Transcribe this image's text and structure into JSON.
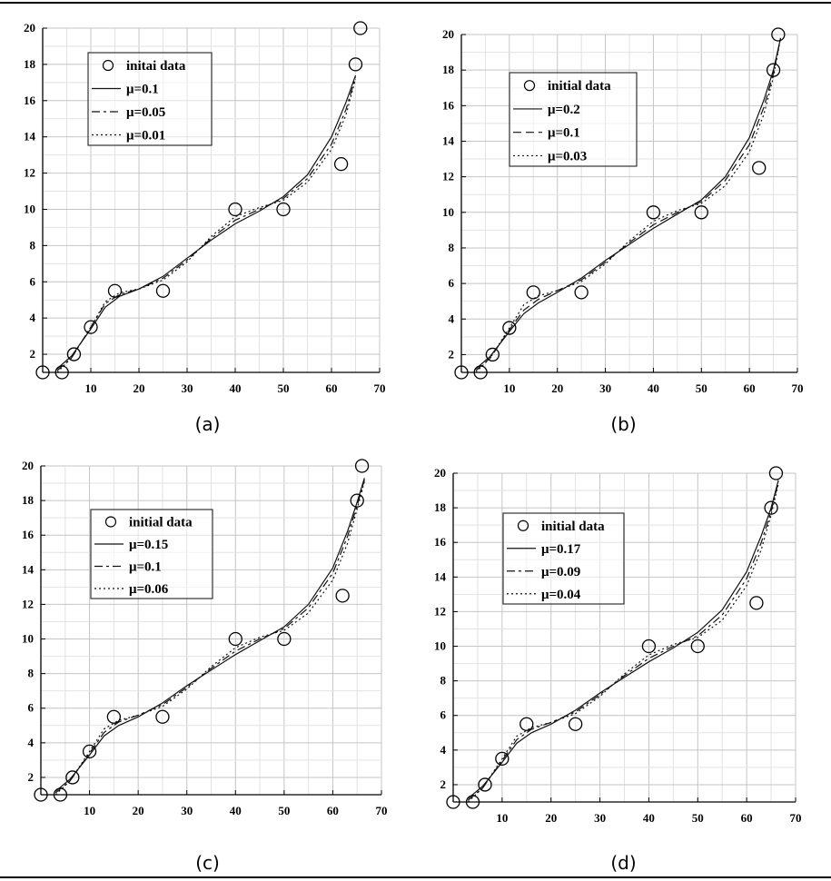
{
  "chart_data": [
    {
      "type": "line",
      "caption": "(a)",
      "xlim": [
        0,
        70
      ],
      "ylim": [
        1,
        20
      ],
      "xticks": [
        10,
        20,
        30,
        40,
        50,
        60,
        70
      ],
      "yticks": [
        2,
        4,
        6,
        8,
        10,
        12,
        14,
        16,
        18,
        20
      ],
      "grid": true,
      "legend_placement": "top-left",
      "scatter": {
        "name": "initai data",
        "x": [
          0,
          4,
          6.5,
          10,
          15,
          25,
          40,
          50,
          62,
          65,
          66
        ],
        "y": [
          1,
          1,
          2,
          3.5,
          5.5,
          5.5,
          10,
          10,
          12.5,
          18,
          20
        ]
      },
      "series": [
        {
          "name": "μ=0.1",
          "style": "solid",
          "x": [
            3,
            6,
            10,
            13,
            16,
            20,
            25,
            30,
            35,
            40,
            45,
            50,
            55,
            60,
            63,
            65
          ],
          "y": [
            1.2,
            1.9,
            3.4,
            4.6,
            5.2,
            5.6,
            6.3,
            7.3,
            8.3,
            9.2,
            9.9,
            10.7,
            11.9,
            14.0,
            15.9,
            17.4
          ]
        },
        {
          "name": "μ=0.05",
          "style": "dashdot",
          "x": [
            3,
            6,
            10,
            13,
            16,
            20,
            25,
            30,
            35,
            40,
            45,
            50,
            55,
            60,
            63,
            65
          ],
          "y": [
            1.1,
            1.8,
            3.5,
            4.8,
            5.3,
            5.6,
            6.2,
            7.2,
            8.4,
            9.4,
            10.0,
            10.6,
            11.7,
            13.6,
            15.5,
            17.3
          ]
        },
        {
          "name": "μ=0.01",
          "style": "dotted",
          "x": [
            3,
            6,
            10,
            13,
            16,
            20,
            25,
            30,
            35,
            40,
            45,
            50,
            55,
            60,
            63,
            65
          ],
          "y": [
            1.0,
            1.8,
            3.5,
            4.9,
            5.4,
            5.6,
            6.1,
            7.1,
            8.5,
            9.6,
            10.1,
            10.5,
            11.5,
            13.3,
            15.2,
            17.2
          ]
        }
      ]
    },
    {
      "type": "line",
      "caption": "(b)",
      "xlim": [
        0,
        70
      ],
      "ylim": [
        1,
        20
      ],
      "xticks": [
        10,
        20,
        30,
        40,
        50,
        60,
        70
      ],
      "yticks": [
        2,
        4,
        6,
        8,
        10,
        12,
        14,
        16,
        18,
        20
      ],
      "grid": true,
      "legend_placement": "top-left",
      "scatter": {
        "name": "initial data",
        "x": [
          0,
          4,
          6.5,
          10,
          15,
          25,
          40,
          50,
          62,
          65,
          66
        ],
        "y": [
          1,
          1,
          2,
          3.5,
          5.5,
          5.5,
          10,
          10,
          12.5,
          18,
          20
        ]
      },
      "series": [
        {
          "name": "μ=0.2",
          "style": "solid",
          "x": [
            3,
            6,
            10,
            13,
            16,
            20,
            25,
            30,
            35,
            40,
            45,
            50,
            55,
            60,
            63,
            65,
            66.5
          ],
          "y": [
            1.2,
            1.9,
            3.3,
            4.3,
            4.9,
            5.5,
            6.3,
            7.3,
            8.2,
            9.1,
            9.9,
            10.7,
            12.0,
            14.2,
            16.3,
            18.0,
            19.8
          ]
        },
        {
          "name": "μ=0.1",
          "style": "dashed",
          "x": [
            3,
            6,
            10,
            13,
            16,
            20,
            25,
            30,
            35,
            40,
            45,
            50,
            55,
            60,
            63,
            65,
            66.5
          ],
          "y": [
            1.1,
            1.8,
            3.4,
            4.5,
            5.1,
            5.6,
            6.2,
            7.2,
            8.3,
            9.3,
            10.0,
            10.6,
            11.8,
            13.8,
            15.9,
            17.8,
            19.8
          ]
        },
        {
          "name": "μ=0.03",
          "style": "dotted",
          "x": [
            3,
            6,
            10,
            13,
            16,
            20,
            25,
            30,
            35,
            40,
            45,
            50,
            55,
            60,
            63,
            65,
            66.5
          ],
          "y": [
            1.0,
            1.8,
            3.5,
            4.8,
            5.3,
            5.6,
            6.1,
            7.1,
            8.4,
            9.5,
            10.1,
            10.5,
            11.5,
            13.4,
            15.5,
            17.6,
            19.8
          ]
        }
      ]
    },
    {
      "type": "line",
      "caption": "(c)",
      "xlim": [
        0,
        70
      ],
      "ylim": [
        1,
        20
      ],
      "xticks": [
        10,
        20,
        30,
        40,
        50,
        60,
        70
      ],
      "yticks": [
        2,
        4,
        6,
        8,
        10,
        12,
        14,
        16,
        18,
        20
      ],
      "grid": true,
      "legend_placement": "top-left",
      "scatter": {
        "name": "initial data",
        "x": [
          0,
          4,
          6.5,
          10,
          15,
          25,
          40,
          50,
          62,
          65,
          66
        ],
        "y": [
          1,
          1,
          2,
          3.5,
          5.5,
          5.5,
          10,
          10,
          12.5,
          18,
          20
        ]
      },
      "series": [
        {
          "name": "μ=0.15",
          "style": "solid",
          "x": [
            3,
            6,
            10,
            13,
            16,
            20,
            25,
            30,
            35,
            40,
            45,
            50,
            55,
            60,
            63,
            65,
            66.5
          ],
          "y": [
            1.2,
            1.9,
            3.3,
            4.4,
            5.0,
            5.5,
            6.3,
            7.3,
            8.2,
            9.1,
            9.9,
            10.7,
            12.0,
            14.1,
            16.2,
            17.9,
            19.3
          ]
        },
        {
          "name": "μ=0.1",
          "style": "dashdot",
          "x": [
            3,
            6,
            10,
            13,
            16,
            20,
            25,
            30,
            35,
            40,
            45,
            50,
            55,
            60,
            63,
            65,
            66.5
          ],
          "y": [
            1.1,
            1.8,
            3.4,
            4.6,
            5.2,
            5.6,
            6.2,
            7.2,
            8.3,
            9.3,
            10.0,
            10.6,
            11.8,
            13.8,
            15.9,
            17.7,
            19.2
          ]
        },
        {
          "name": "μ=0.06",
          "style": "dotted",
          "x": [
            3,
            6,
            10,
            13,
            16,
            20,
            25,
            30,
            35,
            40,
            45,
            50,
            55,
            60,
            63,
            65,
            66.5
          ],
          "y": [
            1.0,
            1.8,
            3.5,
            4.8,
            5.3,
            5.6,
            6.1,
            7.1,
            8.4,
            9.5,
            10.1,
            10.5,
            11.5,
            13.4,
            15.5,
            17.5,
            19.1
          ]
        }
      ]
    },
    {
      "type": "line",
      "caption": "(d)",
      "xlim": [
        0,
        70
      ],
      "ylim": [
        1,
        20
      ],
      "xticks": [
        10,
        20,
        30,
        40,
        50,
        60,
        70
      ],
      "yticks": [
        2,
        4,
        6,
        8,
        10,
        12,
        14,
        16,
        18,
        20
      ],
      "grid": true,
      "legend_placement": "top-left",
      "scatter": {
        "name": "initial data",
        "x": [
          0,
          4,
          6.5,
          10,
          15,
          25,
          40,
          50,
          62,
          65,
          66
        ],
        "y": [
          1,
          1,
          2,
          3.5,
          5.5,
          5.5,
          10,
          10,
          12.5,
          18,
          20
        ]
      },
      "series": [
        {
          "name": "μ=0.17",
          "style": "solid",
          "x": [
            3,
            6,
            10,
            13,
            16,
            20,
            25,
            30,
            35,
            40,
            45,
            50,
            55,
            60,
            63,
            65,
            66.5
          ],
          "y": [
            1.2,
            1.9,
            3.3,
            4.4,
            5.0,
            5.5,
            6.3,
            7.3,
            8.2,
            9.1,
            9.9,
            10.8,
            12.1,
            14.3,
            16.4,
            18.0,
            19.6
          ]
        },
        {
          "name": "μ=0.09",
          "style": "dashdot",
          "x": [
            3,
            6,
            10,
            13,
            16,
            20,
            25,
            30,
            35,
            40,
            45,
            50,
            55,
            60,
            63,
            65,
            66.5
          ],
          "y": [
            1.1,
            1.8,
            3.4,
            4.6,
            5.2,
            5.6,
            6.2,
            7.2,
            8.3,
            9.3,
            10.0,
            10.6,
            11.8,
            13.9,
            16.0,
            17.8,
            19.5
          ]
        },
        {
          "name": "μ=0.04",
          "style": "dotted",
          "x": [
            3,
            6,
            10,
            13,
            16,
            20,
            25,
            30,
            35,
            40,
            45,
            50,
            55,
            60,
            63,
            65,
            66.5
          ],
          "y": [
            1.0,
            1.8,
            3.5,
            4.8,
            5.3,
            5.6,
            6.1,
            7.1,
            8.4,
            9.5,
            10.1,
            10.5,
            11.5,
            13.5,
            15.6,
            17.6,
            19.4
          ]
        }
      ]
    }
  ]
}
